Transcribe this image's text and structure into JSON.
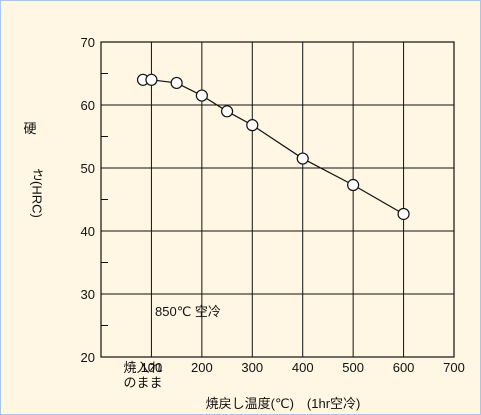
{
  "colors": {
    "background": "#fff6e3",
    "border": "#a8c6e8",
    "line": "#111111"
  },
  "chart_data": {
    "type": "line",
    "title": "",
    "ylabel_top": "硬",
    "ylabel_rest": "さ(HRC)",
    "xlabel": "焼戻し温度(℃)　(1hr空冷)",
    "xlim": [
      0,
      700
    ],
    "ylim": [
      20,
      70
    ],
    "yticks": [
      20,
      30,
      40,
      50,
      60,
      70
    ],
    "xtick_labels": [
      "100",
      "200",
      "300",
      "400",
      "500",
      "600",
      "700"
    ],
    "first_category_label_line1": "焼入れ",
    "first_category_label_line2": "のまま",
    "grid": true,
    "annotation": "850℃ 空冷",
    "series": [
      {
        "marker": "open-circle",
        "points": [
          {
            "x": "焼入れのまま",
            "y": 64
          },
          {
            "x": 100,
            "y": 64
          },
          {
            "x": 150,
            "y": 63.5
          },
          {
            "x": 200,
            "y": 61.5
          },
          {
            "x": 250,
            "y": 59
          },
          {
            "x": 300,
            "y": 56.8
          },
          {
            "x": 400,
            "y": 51.5
          },
          {
            "x": 500,
            "y": 47.3
          },
          {
            "x": 600,
            "y": 42.7
          }
        ]
      }
    ]
  }
}
